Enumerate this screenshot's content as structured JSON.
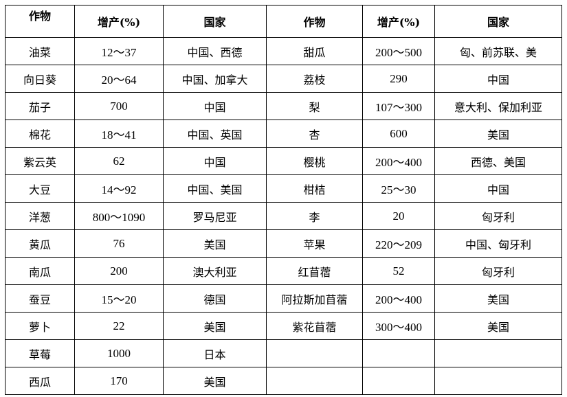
{
  "headers": [
    "作物",
    "增产(%)",
    "国家",
    "作物",
    "增产(%)",
    "国家"
  ],
  "left": [
    [
      "油菜",
      "12～37",
      "中国、西德"
    ],
    [
      "向日葵",
      "20～64",
      "中国、加拿大"
    ],
    [
      "茄子",
      "700",
      "中国"
    ],
    [
      "棉花",
      "18～41",
      "中国、英国"
    ],
    [
      "紫云英",
      "62",
      "中国"
    ],
    [
      "大豆",
      "14～92",
      "中国、美国"
    ],
    [
      "洋葱",
      "800～1090",
      "罗马尼亚"
    ],
    [
      "黄瓜",
      "76",
      "美国"
    ],
    [
      "南瓜",
      "200",
      "澳大利亚"
    ],
    [
      "蚕豆",
      "15～20",
      "德国"
    ],
    [
      "萝卜",
      "22",
      "美国"
    ],
    [
      "草莓",
      "1000",
      "日本"
    ],
    [
      "西瓜",
      "170",
      "美国"
    ]
  ],
  "right": [
    [
      "甜瓜",
      "200～500",
      "匈、前苏联、美"
    ],
    [
      "荔枝",
      "290",
      "中国"
    ],
    [
      "梨",
      "107～300",
      "意大利、保加利亚"
    ],
    [
      "杏",
      "600",
      "美国"
    ],
    [
      "樱桃",
      "200～400",
      "西德、美国"
    ],
    [
      "柑桔",
      "25～30",
      "中国"
    ],
    [
      "李",
      "20",
      "匈牙利"
    ],
    [
      "苹果",
      "220～209",
      "中国、匈牙利"
    ],
    [
      "红苜蓿",
      "52",
      "匈牙利"
    ],
    [
      "阿拉斯加苜蓿",
      "200～400",
      "美国"
    ],
    [
      "紫花苜蓿",
      "300～400",
      "美国"
    ],
    [
      "",
      "",
      ""
    ],
    [
      "",
      "",
      ""
    ]
  ]
}
